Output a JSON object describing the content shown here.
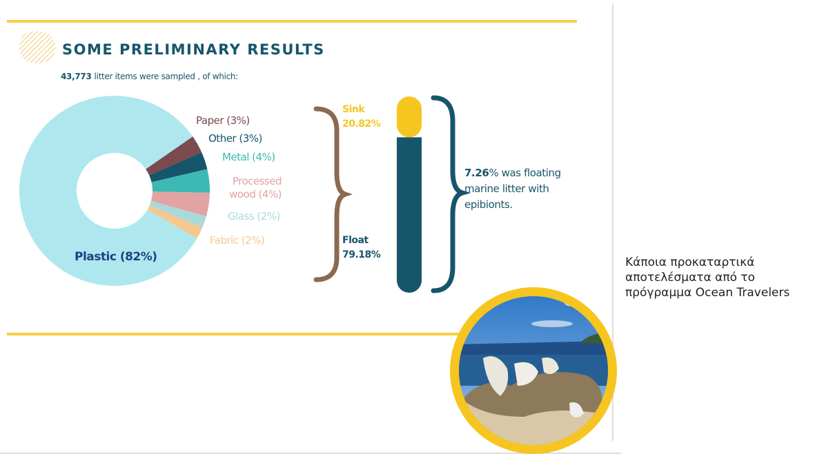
{
  "chart_data": [
    {
      "type": "pie",
      "title": "SOME PRELIMINARY RESULTS",
      "subtitle": [
        "43,773",
        "litter items were sampled , of which:"
      ],
      "values": [
        82,
        3,
        3,
        4,
        4,
        2,
        2
      ],
      "value_labels": [
        "Plastic (82%)",
        "Paper (3%)",
        "Other (3%)",
        "Metal (4%)",
        "Processed wood (4%)",
        "Glass (2%)",
        "Fabric (2%)"
      ],
      "colors": [
        "#aee8ee",
        "#7a4a4c",
        "#17556b",
        "#3cb9b2",
        "#e3a3a3",
        "#aad9da",
        "#f5c88f"
      ]
    },
    {
      "type": "bar",
      "stacked": true,
      "series": [
        {
          "name": "Sink",
          "color": "#f6c51f",
          "values": [
            20.82
          ],
          "value_labels": [
            "20.82%"
          ]
        },
        {
          "name": "Float",
          "color": "#17556b",
          "values": [
            79.18
          ],
          "value_labels": [
            "79.18%"
          ]
        }
      ]
    }
  ],
  "annotation": [
    "7.26",
    "% was floating marine litter with epibionts."
  ],
  "caption": [
    "Κάποια προκαταρτικά",
    "αποτελέσματα από το",
    "πρόγραμμα Ocean Travelers"
  ]
}
